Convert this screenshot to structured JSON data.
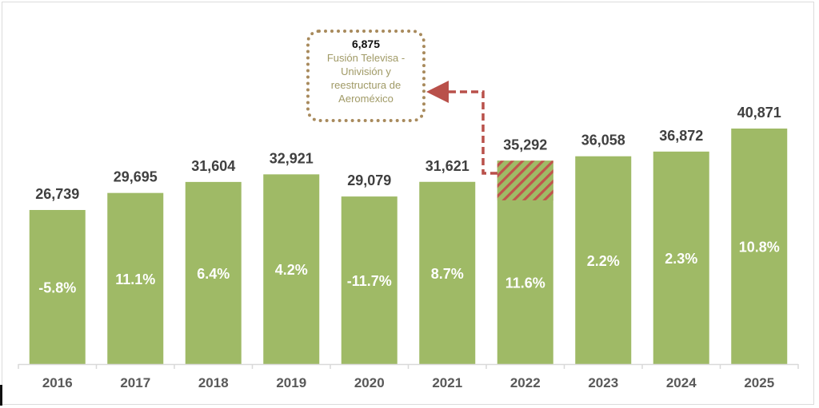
{
  "chart_data": {
    "type": "bar",
    "title": "",
    "xlabel": "",
    "ylabel": "",
    "ylim": [
      0,
      63174
    ],
    "grid": false,
    "categories": [
      "2016",
      "2017",
      "2018",
      "2019",
      "2020",
      "2021",
      "2022",
      "2023",
      "2024",
      "2025"
    ],
    "values": [
      26739,
      29695,
      31604,
      32921,
      29079,
      31621,
      35292,
      36058,
      36872,
      40871
    ],
    "value_labels": [
      "26,739",
      "29,695",
      "31,604",
      "32,921",
      "29,079",
      "31,621",
      "35,292",
      "36,058",
      "36,872",
      "40,871"
    ],
    "growth_labels": [
      "-5.8%",
      "11.1%",
      "6.4%",
      "4.2%",
      "-11.7%",
      "8.7%",
      "11.6%",
      "2.2%",
      "2.3%",
      "10.8%"
    ],
    "highlight": {
      "category": "2022",
      "value": 6875,
      "value_label": "6,875",
      "text": [
        "Fusión Televisa -",
        "Univisión y",
        "reestructura de",
        "Aeroméxico"
      ]
    },
    "colors": {
      "bar": "#9fba66",
      "hatch": "#c0544c",
      "arrow": "#b9504a",
      "callout_border": "#a88a5c",
      "callout_text": "#a09a66",
      "value_text": "#404040",
      "tick_text": "#595959"
    }
  }
}
